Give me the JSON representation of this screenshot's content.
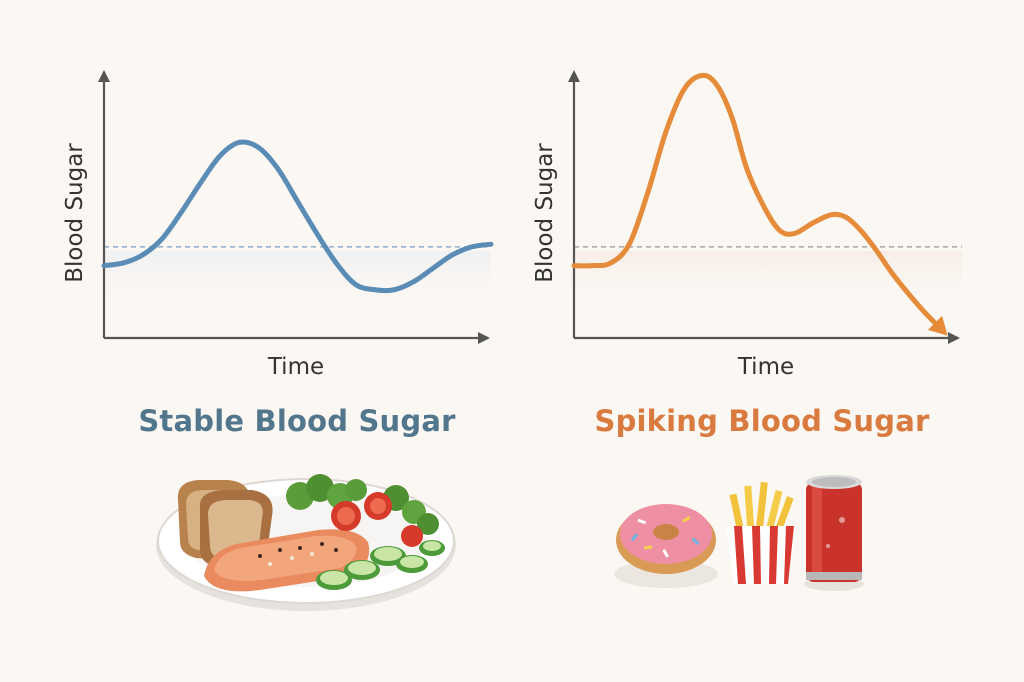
{
  "colors": {
    "background": "#fbf7f3",
    "axis": "#555555",
    "stable": "#5b8cb5",
    "stable_title": "#52778d",
    "spiking": "#e58b3a",
    "spiking_title": "#d97a3e",
    "stable_baseline": "#7a9fc6",
    "spiking_baseline": "#9a9a9a"
  },
  "chart_data": [
    {
      "type": "line",
      "title": "Stable Blood Sugar",
      "xlabel": "Time",
      "ylabel": "Blood Sugar",
      "xlim": [
        0,
        10
      ],
      "ylim": [
        0,
        10
      ],
      "grid": false,
      "baseline": 3.4,
      "series": [
        {
          "x": [
            0,
            0.5,
            1,
            1.5,
            2,
            2.5,
            3,
            3.5,
            4,
            4.5,
            5,
            5.5,
            6,
            6.5,
            7,
            7.5,
            8,
            8.5,
            9,
            9.5,
            10
          ],
          "y": [
            2.7,
            2.8,
            3.1,
            3.7,
            4.7,
            5.8,
            6.8,
            7.3,
            7.1,
            6.3,
            5.1,
            3.9,
            2.8,
            2.0,
            1.8,
            1.8,
            2.1,
            2.6,
            3.1,
            3.4,
            3.5
          ]
        }
      ]
    },
    {
      "type": "line",
      "title": "Spiking Blood Sugar",
      "xlabel": "Time",
      "ylabel": "Blood Sugar",
      "xlim": [
        0,
        10
      ],
      "ylim": [
        0,
        10
      ],
      "grid": false,
      "baseline": 3.4,
      "series": [
        {
          "x": [
            0,
            0.5,
            1,
            1.5,
            2,
            2.5,
            3,
            3.5,
            3.9,
            4.3,
            4.7,
            5.2,
            5.6,
            6,
            6.5,
            7,
            7.4,
            7.8,
            8.2,
            8.6,
            9,
            9.5,
            10
          ],
          "y": [
            2.7,
            2.7,
            2.8,
            3.5,
            5.4,
            7.7,
            9.3,
            9.8,
            9.4,
            8.2,
            6.3,
            4.8,
            4.0,
            3.9,
            4.3,
            4.6,
            4.5,
            4.0,
            3.3,
            2.5,
            1.8,
            1.0,
            0.3
          ]
        }
      ]
    }
  ],
  "food_icons": {
    "stable": [
      "bread-icon",
      "salmon-icon",
      "broccoli-icon",
      "tomato-icon",
      "cucumber-icon",
      "plate-icon"
    ],
    "spiking": [
      "donut-icon",
      "fries-icon",
      "soda-can-icon"
    ]
  }
}
